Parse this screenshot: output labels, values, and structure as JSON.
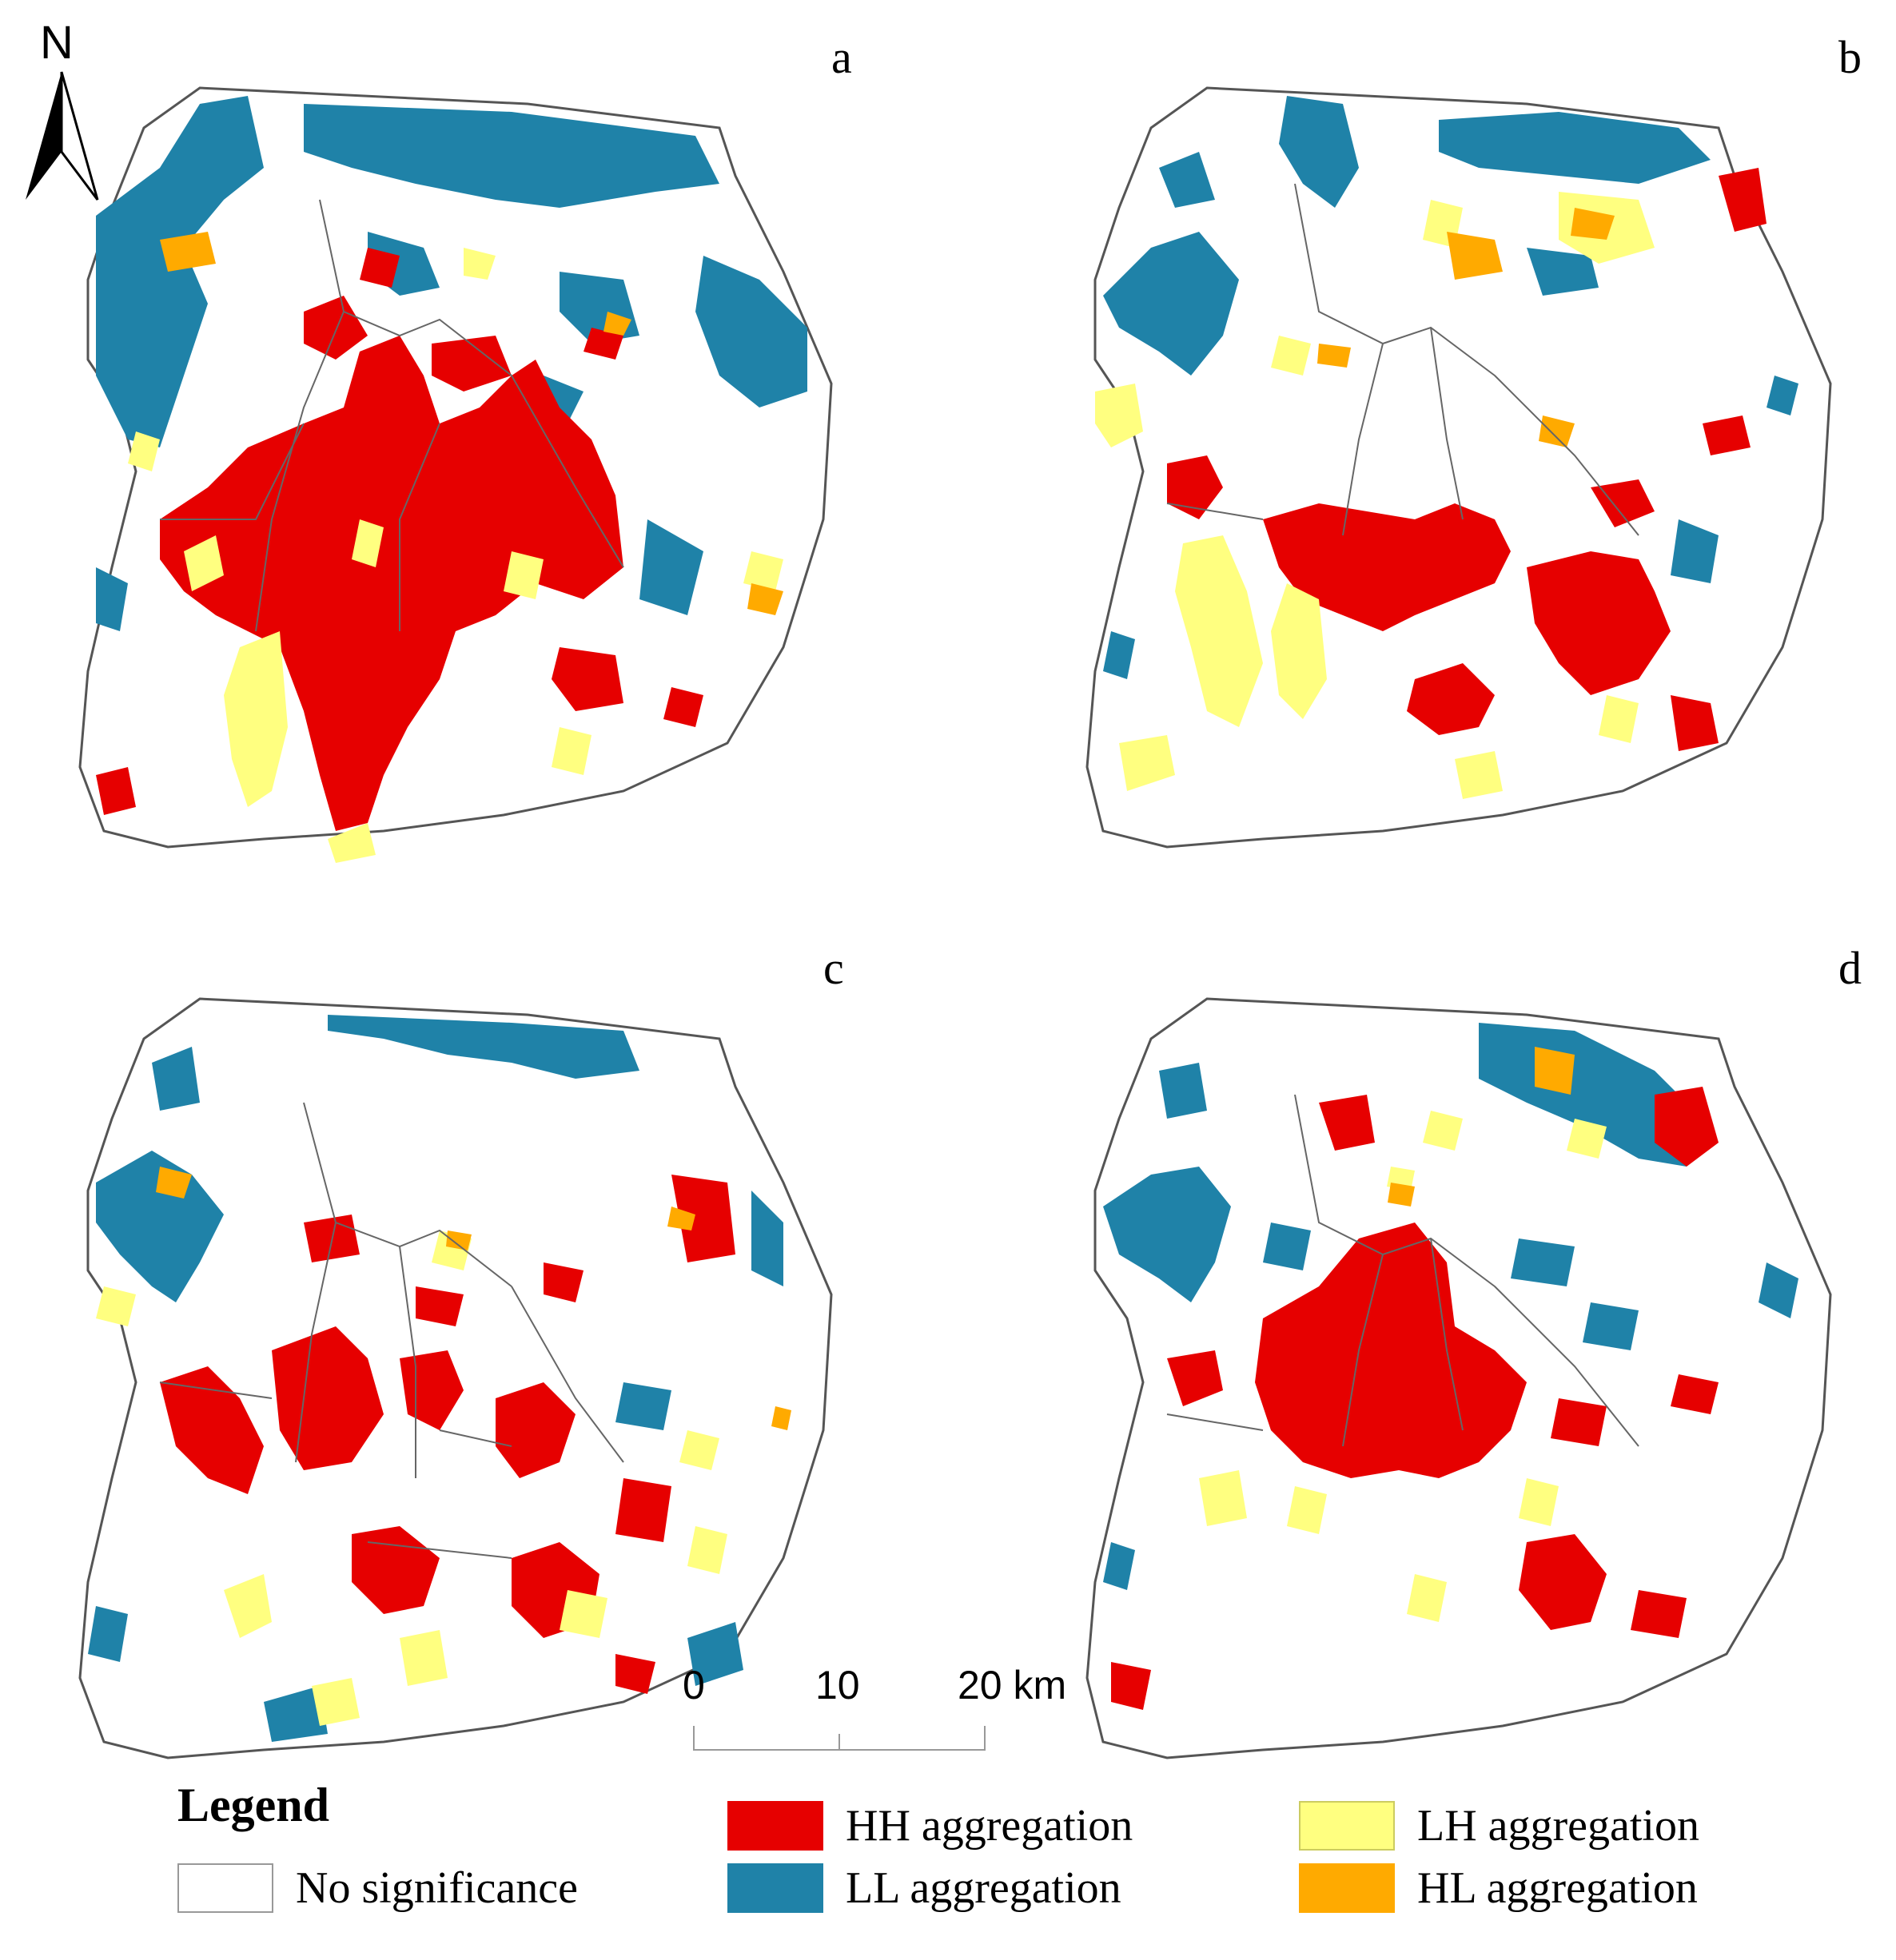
{
  "north_arrow": {
    "label": "N"
  },
  "panels": [
    {
      "id": "a",
      "label": "a"
    },
    {
      "id": "b",
      "label": "b"
    },
    {
      "id": "c",
      "label": "c"
    },
    {
      "id": "d",
      "label": "d"
    }
  ],
  "scale_bar": {
    "ticks": [
      "0",
      "10",
      "20 km"
    ]
  },
  "legend": {
    "title": "Legend",
    "items": [
      {
        "label": "No significance",
        "color": "#ffffff"
      },
      {
        "label": "HH aggregation",
        "color": "#e60000"
      },
      {
        "label": "LL aggregation",
        "color": "#1f82a8"
      },
      {
        "label": "LH aggregation",
        "color": "#ffff80"
      },
      {
        "label": "HL aggregation",
        "color": "#ffaa00"
      }
    ]
  },
  "colors": {
    "HH": "#e60000",
    "LL": "#1f82a8",
    "LH": "#ffff80",
    "HL": "#ffaa00",
    "outline": "#555555"
  }
}
